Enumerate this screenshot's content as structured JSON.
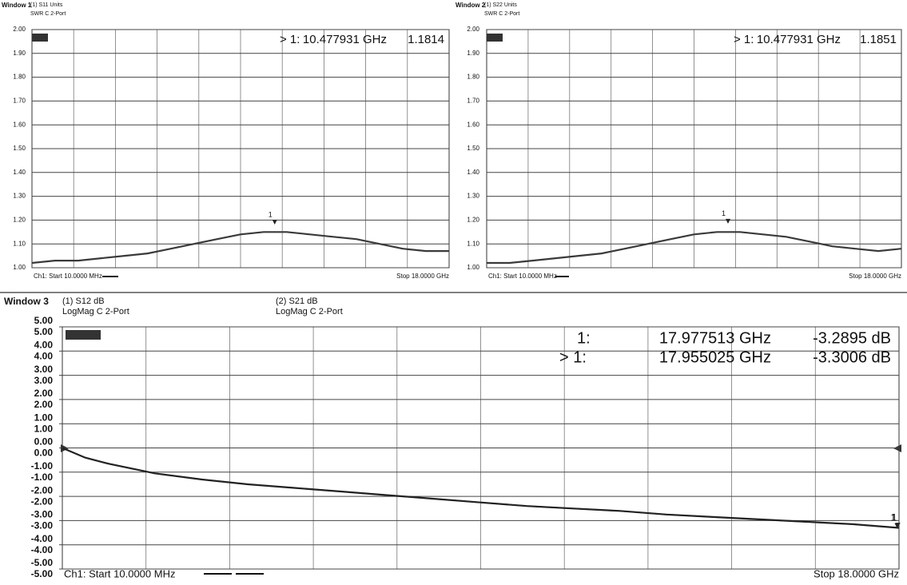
{
  "chart_data": [
    {
      "type": "line",
      "window": "Window 1",
      "series": [
        {
          "name": "(1) S11 Units",
          "format": "SWR C 2-Port",
          "color": "#3a3a3a",
          "values": [
            1.02,
            1.03,
            1.03,
            1.04,
            1.05,
            1.06,
            1.08,
            1.1,
            1.12,
            1.14,
            1.15,
            1.15,
            1.14,
            1.13,
            1.12,
            1.1,
            1.08,
            1.07,
            1.07
          ]
        }
      ],
      "x": [
        0.01,
        1,
        2,
        3,
        4,
        5,
        6,
        7,
        8,
        9,
        10,
        11,
        12,
        13,
        14,
        15,
        16,
        17,
        18
      ],
      "xlim": [
        0.01,
        18
      ],
      "x_divisions": 10,
      "ylim": [
        1,
        2
      ],
      "yticks": [
        {
          "value": 2,
          "label": "2.00"
        },
        {
          "value": 1.9,
          "label": "1.90"
        },
        {
          "value": 1.8,
          "label": "1.80"
        },
        {
          "value": 1.7,
          "label": "1.70"
        },
        {
          "value": 1.6,
          "label": "1.60"
        },
        {
          "value": 1.5,
          "label": "1.50"
        },
        {
          "value": 1.4,
          "label": "1.40"
        },
        {
          "value": 1.3,
          "label": "1.30"
        },
        {
          "value": 1.2,
          "label": "1.20"
        },
        {
          "value": 1.1,
          "label": "1.10"
        },
        {
          "value": 1,
          "label": "1.00"
        }
      ],
      "markers": [
        {
          "name": "1",
          "prefix": "> 1:",
          "x": 10.477931,
          "x_label": "10.477931 GHz",
          "value": 1.1814
        }
      ],
      "start_label": "Ch1: Start 10.0000 MHz",
      "stop_label": "Stop 18.0000 GHz",
      "grid": true
    },
    {
      "type": "line",
      "window": "Window 2",
      "series": [
        {
          "name": "(1) S22 Units",
          "format": "SWR C 2-Port",
          "color": "#3a3a3a",
          "values": [
            1.02,
            1.02,
            1.03,
            1.04,
            1.05,
            1.06,
            1.08,
            1.1,
            1.12,
            1.14,
            1.15,
            1.15,
            1.14,
            1.13,
            1.11,
            1.09,
            1.08,
            1.07,
            1.08
          ]
        }
      ],
      "x": [
        0.01,
        1,
        2,
        3,
        4,
        5,
        6,
        7,
        8,
        9,
        10,
        11,
        12,
        13,
        14,
        15,
        16,
        17,
        18
      ],
      "xlim": [
        0.01,
        18
      ],
      "x_divisions": 10,
      "ylim": [
        1,
        2
      ],
      "yticks": [
        {
          "value": 2,
          "label": "2.00"
        },
        {
          "value": 1.9,
          "label": "1.90"
        },
        {
          "value": 1.8,
          "label": "1.80"
        },
        {
          "value": 1.7,
          "label": "1.70"
        },
        {
          "value": 1.6,
          "label": "1.60"
        },
        {
          "value": 1.5,
          "label": "1.50"
        },
        {
          "value": 1.4,
          "label": "1.40"
        },
        {
          "value": 1.3,
          "label": "1.30"
        },
        {
          "value": 1.2,
          "label": "1.20"
        },
        {
          "value": 1.1,
          "label": "1.10"
        },
        {
          "value": 1,
          "label": "1.00"
        }
      ],
      "markers": [
        {
          "name": "1",
          "prefix": "> 1:",
          "x": 10.477931,
          "x_label": "10.477931 GHz",
          "value": 1.1851
        }
      ],
      "start_label": "Ch1: Start 10.0000 MHz",
      "stop_label": "Stop 18.0000 GHz",
      "grid": true
    },
    {
      "type": "line",
      "window": "Window 3",
      "series": [
        {
          "name": "(1) S12 dB",
          "format": "LogMag C 2-Port",
          "color": "#222222",
          "values": [
            0,
            -0.4,
            -0.65,
            -1.05,
            -1.3,
            -1.5,
            -1.65,
            -1.8,
            -1.95,
            -2.1,
            -2.25,
            -2.4,
            -2.5,
            -2.6,
            -2.75,
            -2.85,
            -2.95,
            -3.05,
            -3.15,
            -3.3
          ]
        },
        {
          "name": "(2) S21 dB",
          "format": "LogMag C 2-Port",
          "color": "#222222",
          "axis": "y2",
          "values": [
            0,
            -0.4,
            -0.65,
            -1.05,
            -1.3,
            -1.5,
            -1.65,
            -1.8,
            -1.95,
            -2.1,
            -2.25,
            -2.4,
            -2.5,
            -2.6,
            -2.75,
            -2.85,
            -2.95,
            -3.05,
            -3.15,
            -3.3
          ]
        }
      ],
      "x": [
        0.01,
        0.5,
        1,
        2,
        3,
        4,
        5,
        6,
        7,
        8,
        9,
        10,
        11,
        12,
        13,
        14,
        15,
        16,
        17,
        18
      ],
      "xlim": [
        0.01,
        18
      ],
      "x_divisions": 10,
      "ylim": [
        -5,
        5
      ],
      "yticks": [
        {
          "value": 5,
          "label": "5.00"
        },
        {
          "value": 4,
          "label": "4.00"
        },
        {
          "value": 3,
          "label": "3.00"
        },
        {
          "value": 2,
          "label": "2.00"
        },
        {
          "value": 1,
          "label": "1.00"
        },
        {
          "value": 0,
          "label": "0.00"
        },
        {
          "value": -1,
          "label": "-1.00"
        },
        {
          "value": -2,
          "label": "-2.00"
        },
        {
          "value": -3,
          "label": "-3.00"
        },
        {
          "value": -4,
          "label": "-4.00"
        },
        {
          "value": -5,
          "label": "-5.00"
        }
      ],
      "y2lim": [
        -5,
        5
      ],
      "y2ticks": [
        {
          "value": 5,
          "label": "5.00"
        },
        {
          "value": 4,
          "label": "4.00"
        },
        {
          "value": 3,
          "label": "3.00"
        },
        {
          "value": 2,
          "label": "2.00"
        },
        {
          "value": 1,
          "label": "1.00"
        },
        {
          "value": 0,
          "label": "0.00"
        },
        {
          "value": -1,
          "label": "-1.00"
        },
        {
          "value": -2,
          "label": "-2.00"
        },
        {
          "value": -3,
          "label": "-3.00"
        },
        {
          "value": -4,
          "label": "-4.00"
        },
        {
          "value": -5,
          "label": "-5.00"
        }
      ],
      "markers": [
        {
          "name": "1",
          "prefix": "1:",
          "x": 17.977513,
          "x_label": "17.977513 GHz",
          "value": -3.2895,
          "value_label": "-3.2895 dB"
        },
        {
          "name": "1",
          "prefix": "> 1:",
          "x": 17.955025,
          "x_label": "17.955025 GHz",
          "value": -3.3006,
          "value_label": "-3.3006 dB"
        }
      ],
      "start_label": "Ch1: Start 10.0000 MHz",
      "stop_label": "Stop 18.0000 GHz",
      "grid": true
    }
  ]
}
